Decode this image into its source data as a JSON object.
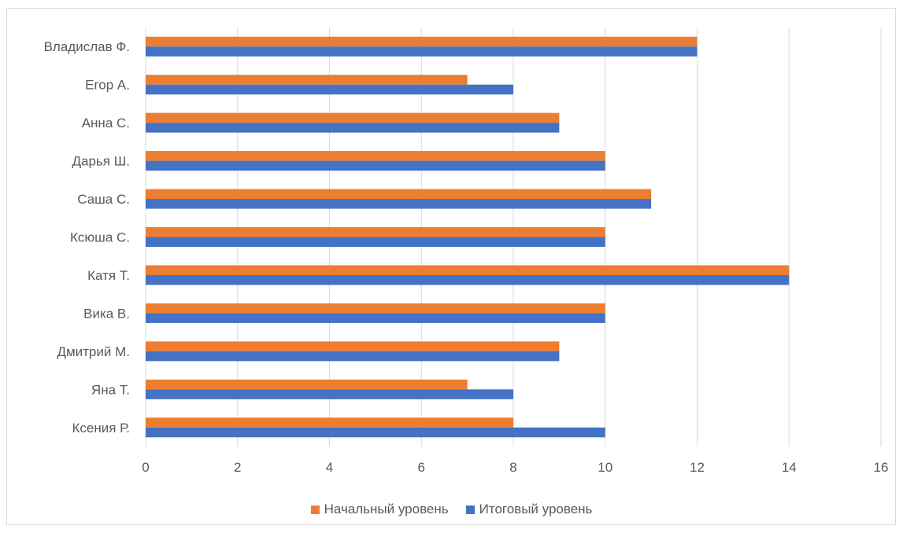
{
  "chart_data": {
    "type": "bar",
    "orientation": "horizontal",
    "categories": [
      "Владислав Ф.",
      "Егор А.",
      "Анна С.",
      "Дарья Ш.",
      "Саша С.",
      "Ксюша С.",
      "Катя Т.",
      "Вика В.",
      "Дмитрий М.",
      "Яна Т.",
      "Ксения Р."
    ],
    "series": [
      {
        "name": "Начальный уровень",
        "color": "#ED7D31",
        "values": [
          12,
          7,
          9,
          10,
          11,
          10,
          14,
          10,
          9,
          7,
          8
        ]
      },
      {
        "name": "Итоговый уровень",
        "color": "#4472C4",
        "values": [
          12,
          8,
          9,
          10,
          11,
          10,
          14,
          10,
          9,
          8,
          10
        ]
      }
    ],
    "xlim": [
      0,
      16
    ],
    "xticks": [
      "0",
      "2",
      "4",
      "6",
      "8",
      "10",
      "12",
      "14",
      "16"
    ],
    "grid": true,
    "legend_position": "bottom"
  }
}
